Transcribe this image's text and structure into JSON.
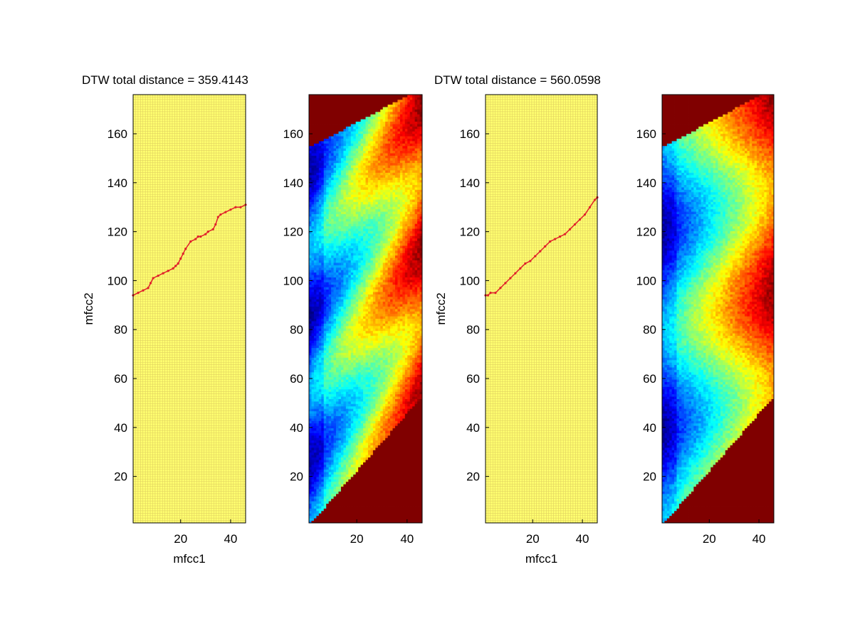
{
  "colors": {
    "background": "#ffffff",
    "path": "#e0202a",
    "band_fill": "#800000",
    "grid_bg": "#ffff70",
    "grid_line": "#e0d060"
  },
  "chart_data": [
    {
      "type": "line",
      "title": "DTW total distance = 359.4143",
      "xlabel": "mfcc1",
      "ylabel": "mfcc2",
      "xlim": [
        1,
        46
      ],
      "ylim": [
        1,
        176
      ],
      "xticks": [
        "20",
        "40"
      ],
      "yticks": [
        "20",
        "40",
        "60",
        "80",
        "100",
        "120",
        "140",
        "160"
      ],
      "grid": true,
      "series": [
        {
          "x": [
            1,
            3,
            5,
            7,
            8,
            9,
            11,
            13,
            15,
            17,
            18,
            19,
            20,
            21,
            22,
            24,
            26,
            27,
            28,
            30,
            31,
            33,
            34,
            35,
            36,
            38,
            40,
            42,
            44,
            46
          ],
          "y": [
            94,
            95,
            96,
            97,
            99,
            101,
            102,
            103,
            104,
            105,
            106,
            107,
            109,
            111,
            113,
            116,
            117,
            118,
            118,
            119,
            120,
            121,
            123,
            126,
            127,
            128,
            129,
            130,
            130,
            131
          ]
        }
      ]
    },
    {
      "type": "heatmap",
      "xlim": [
        1,
        46
      ],
      "ylim": [
        1,
        176
      ],
      "xticks": [
        "20",
        "40"
      ],
      "yticks": [
        "20",
        "40",
        "60",
        "80",
        "100",
        "120",
        "140",
        "160"
      ]
    },
    {
      "type": "line",
      "title": "DTW total distance = 560.0598",
      "xlabel": "mfcc1",
      "ylabel": "mfcc2",
      "xlim": [
        1,
        46
      ],
      "ylim": [
        1,
        176
      ],
      "xticks": [
        "20",
        "40"
      ],
      "yticks": [
        "20",
        "40",
        "60",
        "80",
        "100",
        "120",
        "140",
        "160"
      ],
      "grid": true,
      "series": [
        {
          "x": [
            1,
            2,
            3,
            5,
            7,
            9,
            11,
            13,
            15,
            17,
            19,
            21,
            23,
            25,
            27,
            29,
            31,
            33,
            35,
            37,
            39,
            41,
            43,
            45,
            46
          ],
          "y": [
            94,
            94,
            95,
            95,
            97,
            99,
            101,
            103,
            105,
            107,
            108,
            110,
            112,
            114,
            116,
            117,
            118,
            119,
            121,
            123,
            125,
            127,
            130,
            133,
            134
          ]
        }
      ]
    },
    {
      "type": "heatmap",
      "xlim": [
        1,
        46
      ],
      "ylim": [
        1,
        176
      ],
      "xticks": [
        "20",
        "40"
      ],
      "yticks": [
        "20",
        "40",
        "60",
        "80",
        "100",
        "120",
        "140",
        "160"
      ]
    }
  ]
}
